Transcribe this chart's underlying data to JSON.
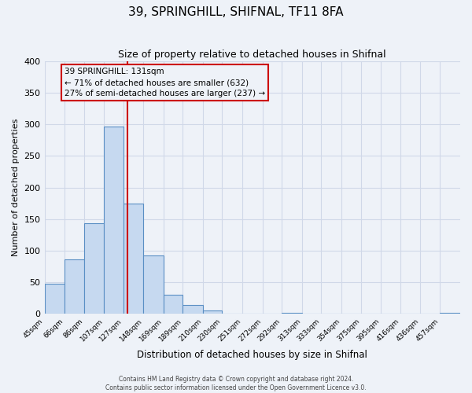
{
  "title": "39, SPRINGHILL, SHIFNAL, TF11 8FA",
  "subtitle": "Size of property relative to detached houses in Shifnal",
  "xlabel": "Distribution of detached houses by size in Shifnal",
  "ylabel": "Number of detached properties",
  "footer_line1": "Contains HM Land Registry data © Crown copyright and database right 2024.",
  "footer_line2": "Contains public sector information licensed under the Open Government Licence v3.0.",
  "bin_labels": [
    "45sqm",
    "66sqm",
    "86sqm",
    "107sqm",
    "127sqm",
    "148sqm",
    "169sqm",
    "189sqm",
    "210sqm",
    "230sqm",
    "251sqm",
    "272sqm",
    "292sqm",
    "313sqm",
    "333sqm",
    "354sqm",
    "375sqm",
    "395sqm",
    "416sqm",
    "436sqm",
    "457sqm"
  ],
  "bar_values": [
    47,
    86,
    144,
    297,
    175,
    92,
    30,
    14,
    5,
    0,
    0,
    0,
    2,
    0,
    0,
    0,
    0,
    0,
    0,
    0,
    2
  ],
  "bin_edges": [
    45,
    66,
    86,
    107,
    127,
    148,
    169,
    189,
    210,
    230,
    251,
    272,
    292,
    313,
    333,
    354,
    375,
    395,
    416,
    436,
    457,
    478
  ],
  "bar_color": "#c6d9f0",
  "bar_edge_color": "#5a8fc4",
  "vline_color": "#cc0000",
  "vline_x": 131,
  "annotation_line1": "39 SPRINGHILL: 131sqm",
  "annotation_line2": "← 71% of detached houses are smaller (632)",
  "annotation_line3": "27% of semi-detached houses are larger (237) →",
  "annotation_box_edge_color": "#cc0000",
  "ylim": [
    0,
    400
  ],
  "yticks": [
    0,
    50,
    100,
    150,
    200,
    250,
    300,
    350,
    400
  ],
  "grid_color": "#d0d8e8",
  "background_color": "#eef2f8",
  "title_fontsize": 11,
  "subtitle_fontsize": 9
}
